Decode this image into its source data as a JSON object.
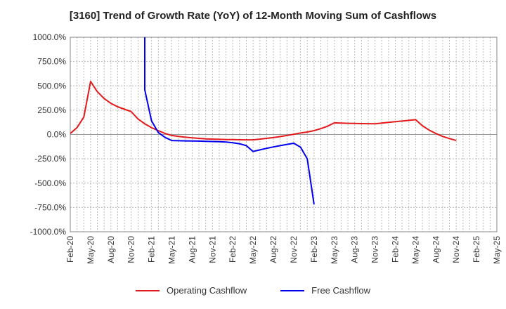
{
  "chart_data": {
    "type": "line",
    "title": "[3160]  Trend of Growth Rate (YoY) of 12-Month Moving Sum of Cashflows",
    "xlabel": "",
    "ylabel": "",
    "ylim": [
      -1000,
      1000
    ],
    "yticks": [
      "1000.0%",
      "750.0%",
      "500.0%",
      "250.0%",
      "0.0%",
      "-250.0%",
      "-500.0%",
      "-750.0%",
      "-1000.0%"
    ],
    "ytick_values": [
      1000,
      750,
      500,
      250,
      0,
      -250,
      -500,
      -750,
      -1000
    ],
    "xticks": [
      "Feb-20",
      "May-20",
      "Aug-20",
      "Nov-20",
      "Feb-21",
      "May-21",
      "Aug-21",
      "Nov-21",
      "Feb-22",
      "May-22",
      "Aug-22",
      "Nov-22",
      "Feb-23",
      "May-23",
      "Aug-23",
      "Nov-23",
      "Feb-24",
      "May-24",
      "Aug-24",
      "Nov-24",
      "Feb-25",
      "May-25"
    ],
    "grid": true,
    "legend_position": "bottom",
    "series": [
      {
        "name": "Operating Cashflow",
        "color": "#e31a1c",
        "points": [
          [
            "Feb-20",
            10
          ],
          [
            "Mar-20",
            70
          ],
          [
            "Apr-20",
            180
          ],
          [
            "May-20",
            545
          ],
          [
            "Jun-20",
            440
          ],
          [
            "Jul-20",
            370
          ],
          [
            "Aug-20",
            320
          ],
          [
            "Sep-20",
            285
          ],
          [
            "Oct-20",
            260
          ],
          [
            "Nov-20",
            235
          ],
          [
            "Dec-20",
            160
          ],
          [
            "Jan-21",
            110
          ],
          [
            "Feb-21",
            70
          ],
          [
            "Mar-21",
            40
          ],
          [
            "Apr-21",
            10
          ],
          [
            "May-21",
            -10
          ],
          [
            "Jun-21",
            -20
          ],
          [
            "Jul-21",
            -28
          ],
          [
            "Aug-21",
            -35
          ],
          [
            "Sep-21",
            -40
          ],
          [
            "Oct-21",
            -45
          ],
          [
            "Nov-21",
            -48
          ],
          [
            "Dec-21",
            -50
          ],
          [
            "Jan-22",
            -52
          ],
          [
            "Feb-22",
            -53
          ],
          [
            "Mar-22",
            -54
          ],
          [
            "Apr-22",
            -55
          ],
          [
            "May-22",
            -55
          ],
          [
            "Jun-22",
            -48
          ],
          [
            "Jul-22",
            -40
          ],
          [
            "Aug-22",
            -32
          ],
          [
            "Sep-22",
            -22
          ],
          [
            "Oct-22",
            -10
          ],
          [
            "Nov-22",
            2
          ],
          [
            "Dec-22",
            15
          ],
          [
            "Jan-23",
            25
          ],
          [
            "Feb-23",
            40
          ],
          [
            "Mar-23",
            60
          ],
          [
            "Apr-23",
            85
          ],
          [
            "May-23",
            120
          ],
          [
            "Jun-23",
            118
          ],
          [
            "Jul-23",
            115
          ],
          [
            "Aug-23",
            113
          ],
          [
            "Sep-23",
            112
          ],
          [
            "Oct-23",
            111
          ],
          [
            "Nov-23",
            110
          ],
          [
            "Dec-23",
            118
          ],
          [
            "Jan-24",
            125
          ],
          [
            "Feb-24",
            132
          ],
          [
            "Mar-24",
            138
          ],
          [
            "Apr-24",
            145
          ],
          [
            "May-24",
            152
          ],
          [
            "Jun-24",
            90
          ],
          [
            "Jul-24",
            45
          ],
          [
            "Aug-24",
            10
          ],
          [
            "Sep-24",
            -20
          ],
          [
            "Oct-24",
            -42
          ],
          [
            "Nov-24",
            -62
          ]
        ]
      },
      {
        "name": "Free Cashflow",
        "color": "#0000ee",
        "points": [
          [
            "Jan-21",
            1050
          ],
          [
            "Jan-21",
            460
          ],
          [
            "Feb-21",
            140
          ],
          [
            "Mar-21",
            20
          ],
          [
            "Apr-21",
            -30
          ],
          [
            "May-21",
            -62
          ],
          [
            "Jun-21",
            -64
          ],
          [
            "Jul-21",
            -66
          ],
          [
            "Aug-21",
            -67
          ],
          [
            "Sep-21",
            -68
          ],
          [
            "Oct-21",
            -70
          ],
          [
            "Nov-21",
            -72
          ],
          [
            "Dec-21",
            -74
          ],
          [
            "Jan-22",
            -78
          ],
          [
            "Feb-22",
            -85
          ],
          [
            "Mar-22",
            -95
          ],
          [
            "Apr-22",
            -115
          ],
          [
            "May-22",
            -175
          ],
          [
            "Jun-22",
            -158
          ],
          [
            "Jul-22",
            -142
          ],
          [
            "Aug-22",
            -128
          ],
          [
            "Sep-22",
            -115
          ],
          [
            "Oct-22",
            -102
          ],
          [
            "Nov-22",
            -90
          ],
          [
            "Dec-22",
            -130
          ],
          [
            "Jan-23",
            -250
          ],
          [
            "Feb-23",
            -720
          ]
        ]
      }
    ]
  }
}
